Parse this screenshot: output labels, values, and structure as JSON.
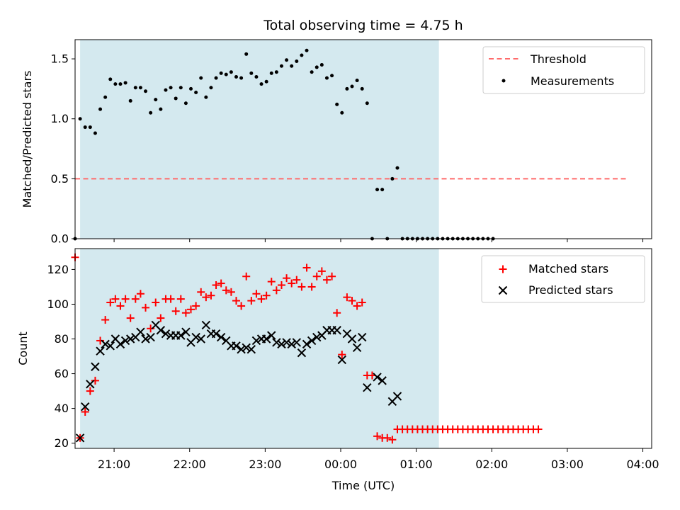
{
  "chart_data": [
    {
      "type": "scatter",
      "title": "Total observing time = 4.75 h",
      "xlabel": "",
      "ylabel": "Matched/Predicted stars",
      "ylim": [
        0,
        1.66
      ],
      "yticks": [
        "0.0",
        "0.5",
        "1.0",
        "1.5"
      ],
      "xlim": [
        "20:29",
        "04:07"
      ],
      "shaded_interval": [
        "20:33",
        "01:18"
      ],
      "shade_color": "#d4e9ef",
      "legend_position": "top-right",
      "threshold": {
        "name": "Threshold",
        "y": 0.5,
        "x_start": "20:29",
        "x_end": "03:48",
        "color": "#ff6b6b"
      },
      "series": [
        {
          "name": "Measurements",
          "color": "#000000",
          "points": [
            [
              "20:29",
              0.0
            ],
            [
              "20:33",
              1.0
            ],
            [
              "20:37",
              0.93
            ],
            [
              "20:41",
              0.93
            ],
            [
              "20:45",
              0.88
            ],
            [
              "20:49",
              1.08
            ],
            [
              "20:53",
              1.18
            ],
            [
              "20:57",
              1.33
            ],
            [
              "21:01",
              1.29
            ],
            [
              "21:05",
              1.29
            ],
            [
              "21:09",
              1.3
            ],
            [
              "21:13",
              1.15
            ],
            [
              "21:17",
              1.26
            ],
            [
              "21:21",
              1.26
            ],
            [
              "21:25",
              1.23
            ],
            [
              "21:29",
              1.05
            ],
            [
              "21:33",
              1.16
            ],
            [
              "21:37",
              1.08
            ],
            [
              "21:41",
              1.24
            ],
            [
              "21:45",
              1.26
            ],
            [
              "21:49",
              1.17
            ],
            [
              "21:53",
              1.26
            ],
            [
              "21:57",
              1.13
            ],
            [
              "22:01",
              1.25
            ],
            [
              "22:05",
              1.22
            ],
            [
              "22:09",
              1.34
            ],
            [
              "22:13",
              1.18
            ],
            [
              "22:17",
              1.26
            ],
            [
              "22:21",
              1.34
            ],
            [
              "22:25",
              1.38
            ],
            [
              "22:29",
              1.37
            ],
            [
              "22:33",
              1.39
            ],
            [
              "22:37",
              1.35
            ],
            [
              "22:41",
              1.34
            ],
            [
              "22:45",
              1.54
            ],
            [
              "22:49",
              1.38
            ],
            [
              "22:53",
              1.35
            ],
            [
              "22:57",
              1.29
            ],
            [
              "23:01",
              1.31
            ],
            [
              "23:05",
              1.38
            ],
            [
              "23:09",
              1.39
            ],
            [
              "23:13",
              1.44
            ],
            [
              "23:17",
              1.49
            ],
            [
              "23:21",
              1.44
            ],
            [
              "23:25",
              1.48
            ],
            [
              "23:29",
              1.53
            ],
            [
              "23:33",
              1.57
            ],
            [
              "23:37",
              1.39
            ],
            [
              "23:41",
              1.43
            ],
            [
              "23:45",
              1.45
            ],
            [
              "23:49",
              1.34
            ],
            [
              "23:53",
              1.36
            ],
            [
              "23:57",
              1.12
            ],
            [
              "00:01",
              1.05
            ],
            [
              "00:05",
              1.25
            ],
            [
              "00:09",
              1.27
            ],
            [
              "00:13",
              1.32
            ],
            [
              "00:17",
              1.25
            ],
            [
              "00:21",
              1.13
            ],
            [
              "00:25",
              0.0
            ],
            [
              "00:29",
              0.41
            ],
            [
              "00:33",
              0.41
            ],
            [
              "00:37",
              0.0
            ],
            [
              "00:41",
              0.5
            ],
            [
              "00:45",
              0.59
            ],
            [
              "00:49",
              0.0
            ],
            [
              "00:53",
              0.0
            ],
            [
              "00:57",
              0.0
            ],
            [
              "01:01",
              0.0
            ],
            [
              "01:05",
              0.0
            ],
            [
              "01:09",
              0.0
            ],
            [
              "01:13",
              0.0
            ],
            [
              "01:17",
              0.0
            ],
            [
              "01:21",
              0.0
            ],
            [
              "01:25",
              0.0
            ],
            [
              "01:29",
              0.0
            ],
            [
              "01:33",
              0.0
            ],
            [
              "01:37",
              0.0
            ],
            [
              "01:41",
              0.0
            ],
            [
              "01:45",
              0.0
            ],
            [
              "01:49",
              0.0
            ],
            [
              "01:53",
              0.0
            ],
            [
              "01:57",
              0.0
            ],
            [
              "02:01",
              0.0
            ]
          ]
        }
      ]
    },
    {
      "type": "scatter",
      "title": "",
      "xlabel": "Time (UTC)",
      "ylabel": "Count",
      "ylim": [
        17,
        132
      ],
      "yticks": [
        "20",
        "40",
        "60",
        "80",
        "100",
        "120"
      ],
      "xlim": [
        "20:29",
        "04:07"
      ],
      "xticks": [
        "21:00",
        "22:00",
        "23:00",
        "00:00",
        "01:00",
        "02:00",
        "03:00",
        "04:00"
      ],
      "shaded_interval": [
        "20:33",
        "01:18"
      ],
      "shade_color": "#d4e9ef",
      "legend_position": "top-right",
      "series": [
        {
          "name": "Matched stars",
          "marker": "plus",
          "color": "#ff0000",
          "points": [
            [
              "20:29",
              127
            ],
            [
              "20:33",
              23
            ],
            [
              "20:37",
              38
            ],
            [
              "20:41",
              50
            ],
            [
              "20:45",
              56
            ],
            [
              "20:49",
              79
            ],
            [
              "20:53",
              91
            ],
            [
              "20:57",
              101
            ],
            [
              "21:01",
              103
            ],
            [
              "21:05",
              99
            ],
            [
              "21:09",
              103
            ],
            [
              "21:13",
              92
            ],
            [
              "21:17",
              103
            ],
            [
              "21:21",
              106
            ],
            [
              "21:25",
              98
            ],
            [
              "21:29",
              86
            ],
            [
              "21:33",
              101
            ],
            [
              "21:37",
              92
            ],
            [
              "21:41",
              103
            ],
            [
              "21:45",
              103
            ],
            [
              "21:49",
              96
            ],
            [
              "21:53",
              103
            ],
            [
              "21:57",
              95
            ],
            [
              "22:01",
              97
            ],
            [
              "22:05",
              99
            ],
            [
              "22:09",
              107
            ],
            [
              "22:13",
              104
            ],
            [
              "22:17",
              105
            ],
            [
              "22:21",
              111
            ],
            [
              "22:25",
              112
            ],
            [
              "22:29",
              108
            ],
            [
              "22:33",
              107
            ],
            [
              "22:37",
              102
            ],
            [
              "22:41",
              99
            ],
            [
              "22:45",
              116
            ],
            [
              "22:49",
              102
            ],
            [
              "22:53",
              106
            ],
            [
              "22:57",
              103
            ],
            [
              "23:01",
              105
            ],
            [
              "23:05",
              113
            ],
            [
              "23:09",
              108
            ],
            [
              "23:13",
              111
            ],
            [
              "23:17",
              115
            ],
            [
              "23:21",
              112
            ],
            [
              "23:25",
              114
            ],
            [
              "23:29",
              110
            ],
            [
              "23:33",
              121
            ],
            [
              "23:37",
              110
            ],
            [
              "23:41",
              116
            ],
            [
              "23:45",
              119
            ],
            [
              "23:49",
              114
            ],
            [
              "23:53",
              116
            ],
            [
              "23:57",
              95
            ],
            [
              "00:01",
              71
            ],
            [
              "00:05",
              104
            ],
            [
              "00:09",
              102
            ],
            [
              "00:13",
              99
            ],
            [
              "00:17",
              101
            ],
            [
              "00:21",
              59
            ],
            [
              "00:25",
              59
            ],
            [
              "00:29",
              24
            ],
            [
              "00:33",
              23
            ],
            [
              "00:37",
              23
            ],
            [
              "00:41",
              22
            ],
            [
              "00:45",
              28
            ],
            [
              "00:49",
              28
            ],
            [
              "00:53",
              28
            ],
            [
              "00:57",
              28
            ],
            [
              "01:01",
              28
            ],
            [
              "01:05",
              28
            ],
            [
              "01:09",
              28
            ],
            [
              "01:13",
              28
            ],
            [
              "01:17",
              28
            ],
            [
              "01:21",
              28
            ],
            [
              "01:25",
              28
            ],
            [
              "01:29",
              28
            ],
            [
              "01:33",
              28
            ],
            [
              "01:37",
              28
            ],
            [
              "01:41",
              28
            ],
            [
              "01:45",
              28
            ],
            [
              "01:49",
              28
            ],
            [
              "01:53",
              28
            ],
            [
              "01:57",
              28
            ],
            [
              "02:01",
              28
            ],
            [
              "02:05",
              28
            ],
            [
              "02:09",
              28
            ],
            [
              "02:13",
              28
            ],
            [
              "02:17",
              28
            ],
            [
              "02:21",
              28
            ],
            [
              "02:25",
              28
            ],
            [
              "02:29",
              28
            ],
            [
              "02:33",
              28
            ],
            [
              "02:37",
              28
            ]
          ]
        },
        {
          "name": "Predicted stars",
          "marker": "x",
          "color": "#000000",
          "points": [
            [
              "20:33",
              23
            ],
            [
              "20:37",
              41
            ],
            [
              "20:41",
              54
            ],
            [
              "20:45",
              64
            ],
            [
              "20:49",
              73
            ],
            [
              "20:53",
              77
            ],
            [
              "20:57",
              76
            ],
            [
              "21:01",
              80
            ],
            [
              "21:05",
              77
            ],
            [
              "21:09",
              79
            ],
            [
              "21:13",
              80
            ],
            [
              "21:17",
              81
            ],
            [
              "21:21",
              84
            ],
            [
              "21:25",
              80
            ],
            [
              "21:29",
              81
            ],
            [
              "21:33",
              88
            ],
            [
              "21:37",
              85
            ],
            [
              "21:41",
              83
            ],
            [
              "21:45",
              82
            ],
            [
              "21:49",
              82
            ],
            [
              "21:53",
              82
            ],
            [
              "21:57",
              84
            ],
            [
              "22:01",
              78
            ],
            [
              "22:05",
              81
            ],
            [
              "22:09",
              80
            ],
            [
              "22:13",
              88
            ],
            [
              "22:17",
              83
            ],
            [
              "22:21",
              83
            ],
            [
              "22:25",
              81
            ],
            [
              "22:29",
              79
            ],
            [
              "22:33",
              76
            ],
            [
              "22:37",
              76
            ],
            [
              "22:41",
              74
            ],
            [
              "22:45",
              75
            ],
            [
              "22:49",
              74
            ],
            [
              "22:53",
              79
            ],
            [
              "22:57",
              80
            ],
            [
              "23:01",
              80
            ],
            [
              "23:05",
              82
            ],
            [
              "23:09",
              78
            ],
            [
              "23:13",
              77
            ],
            [
              "23:17",
              78
            ],
            [
              "23:21",
              77
            ],
            [
              "23:25",
              78
            ],
            [
              "23:29",
              72
            ],
            [
              "23:33",
              77
            ],
            [
              "23:37",
              79
            ],
            [
              "23:41",
              81
            ],
            [
              "23:45",
              82
            ],
            [
              "23:49",
              85
            ],
            [
              "23:53",
              85
            ],
            [
              "23:57",
              85
            ],
            [
              "00:01",
              68
            ],
            [
              "00:05",
              83
            ],
            [
              "00:09",
              80
            ],
            [
              "00:13",
              75
            ],
            [
              "00:17",
              81
            ],
            [
              "00:21",
              52
            ],
            [
              "00:29",
              58
            ],
            [
              "00:33",
              56
            ],
            [
              "00:41",
              44
            ],
            [
              "00:45",
              47
            ]
          ]
        }
      ]
    }
  ]
}
